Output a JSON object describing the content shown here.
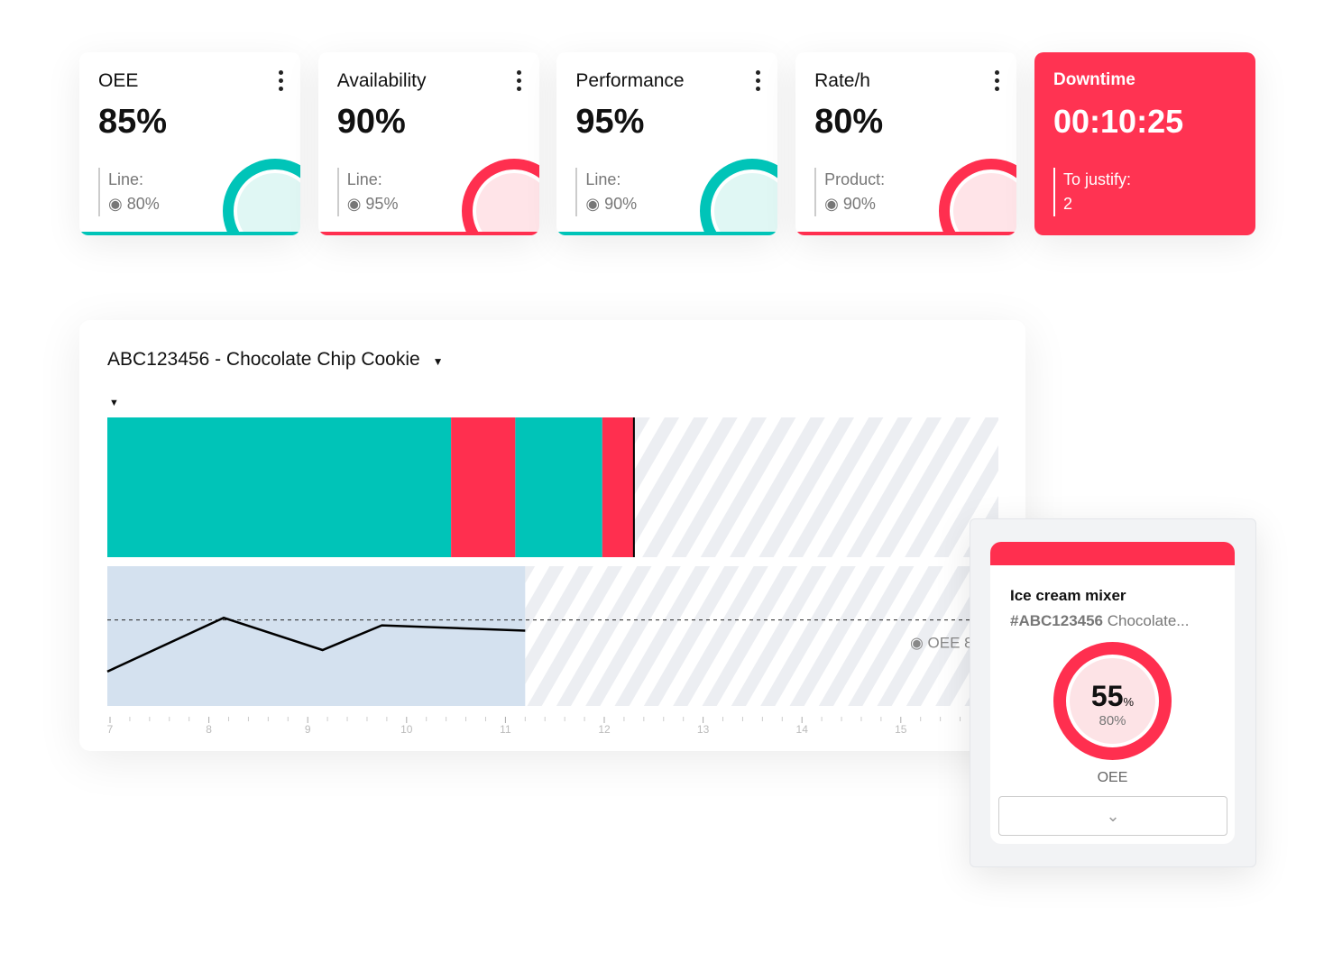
{
  "colors": {
    "teal": "#00c4b8",
    "red": "#ff2f4f",
    "downtime_bg": "#ff3352",
    "plan_area": "#d4e1ef"
  },
  "kpis": [
    {
      "title": "OEE",
      "value": "85%",
      "sub_label": "Line:",
      "sub_value": "80%",
      "status": "teal",
      "icon": "target-icon"
    },
    {
      "title": "Availability",
      "value": "90%",
      "sub_label": "Line:",
      "sub_value": "95%",
      "status": "red",
      "icon": "target-icon"
    },
    {
      "title": "Performance",
      "value": "95%",
      "sub_label": "Line:",
      "sub_value": "90%",
      "status": "teal",
      "icon": "target-icon"
    },
    {
      "title": "Rate/h",
      "value": "80%",
      "sub_label": "Product:",
      "sub_value": "90%",
      "status": "red",
      "icon": "target-icon"
    }
  ],
  "downtime": {
    "title": "Downtime",
    "value": "00:10:25",
    "sub_label": "To justify:",
    "sub_value": "2"
  },
  "chart_card": {
    "title": "ABC123456 - Chocolate Chip Cookie"
  },
  "chart_data": {
    "type": "line",
    "timeline": [
      {
        "state": "running",
        "start": 7.0,
        "end": 10.45
      },
      {
        "state": "down",
        "start": 10.45,
        "end": 11.1
      },
      {
        "state": "running",
        "start": 11.1,
        "end": 11.98
      },
      {
        "state": "down",
        "start": 11.98,
        "end": 12.3
      }
    ],
    "now": 12.3,
    "x": [
      7.0,
      8.15,
      9.15,
      9.75,
      11.2
    ],
    "y": [
      32,
      82,
      52,
      75,
      70
    ],
    "threshold": {
      "value": 80,
      "label": "OEE 8"
    },
    "xlim": [
      7,
      16.2
    ],
    "ylim": [
      0,
      130
    ],
    "xticks": [
      "7",
      "8",
      "9",
      "10",
      "11",
      "12",
      "13",
      "14",
      "15"
    ],
    "grid": false
  },
  "popup": {
    "machine": "Ice cream mixer",
    "order_id": "#ABC123456",
    "product": "Chocolate...",
    "value": "55",
    "unit": "%",
    "target": "80%",
    "metric": "OEE",
    "gauge_fraction": 0.55
  }
}
